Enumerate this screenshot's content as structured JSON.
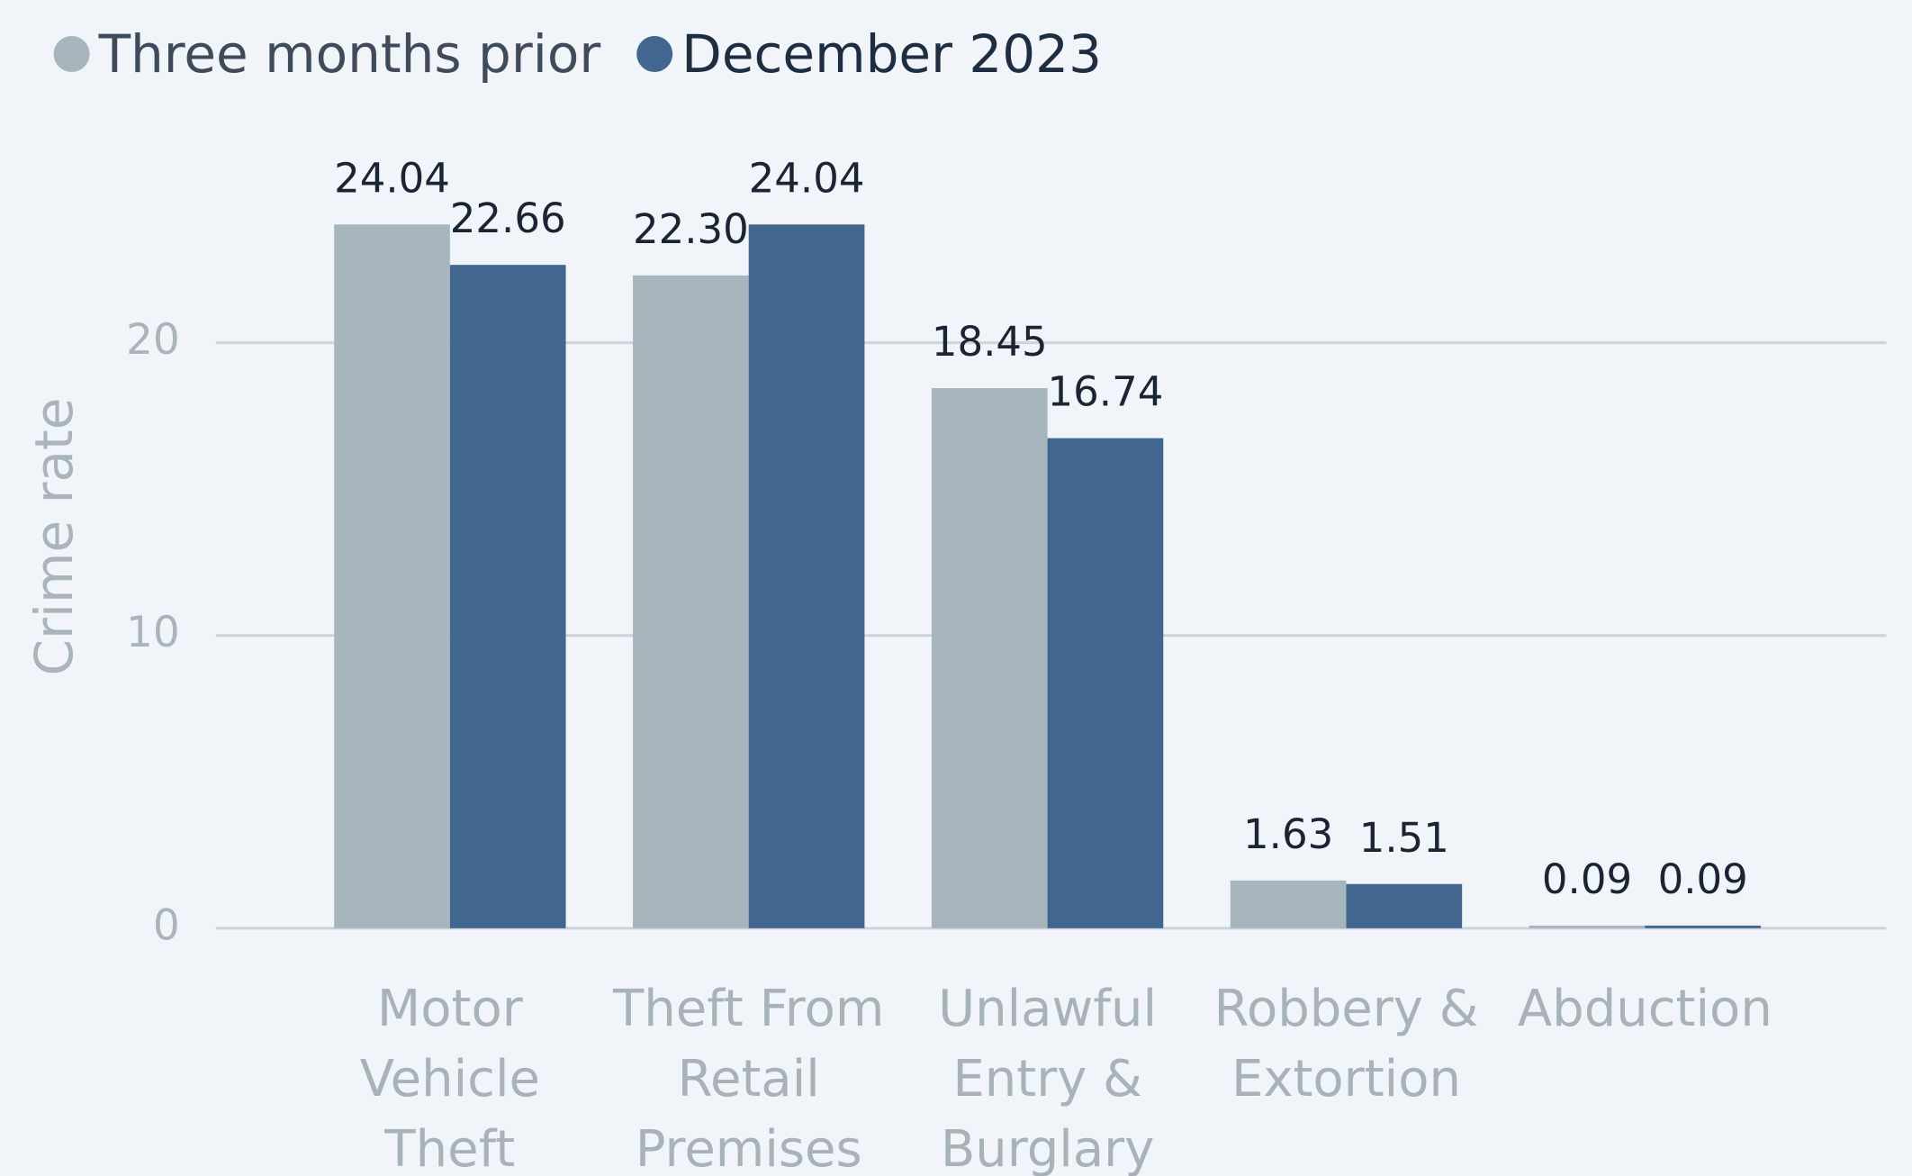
{
  "chart_data": {
    "type": "bar",
    "y_label": "Crime rate",
    "categories": [
      "Motor Vehicle Theft",
      "Theft From Retail Premises",
      "Unlawful Entry & Burglary",
      "Robbery & Extortion",
      "Abduction"
    ],
    "series": [
      {
        "name": "Three months prior",
        "color": "#a7b5bd",
        "values": [
          24.04,
          22.3,
          18.45,
          1.63,
          0.09
        ],
        "value_labels": [
          "24.04",
          "22.30",
          "18.45",
          "1.63",
          "0.09"
        ]
      },
      {
        "name": "December 2023",
        "color": "#41668f",
        "values": [
          22.66,
          24.04,
          16.74,
          1.51,
          0.09
        ],
        "value_labels": [
          "22.66",
          "24.04",
          "16.74",
          "1.51",
          "0.09"
        ]
      }
    ],
    "ylim": [
      0,
      25
    ],
    "yticks": [
      0,
      10,
      20
    ],
    "grid": true,
    "legend": "top-left"
  }
}
